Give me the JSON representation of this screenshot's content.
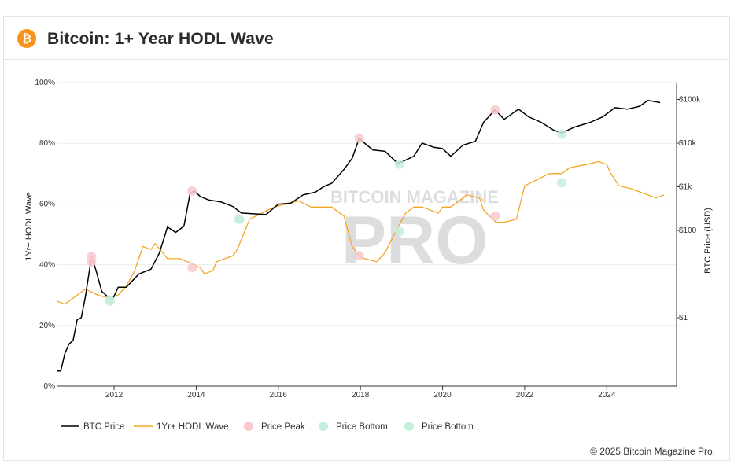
{
  "header": {
    "icon": "bitcoin-icon",
    "logo_glyph": "₿",
    "title": "Bitcoin: 1+ Year HODL Wave"
  },
  "watermark": {
    "top": "BITCOIN MAGAZINE",
    "main": "PRO"
  },
  "copyright": "© 2025 Bitcoin Magazine Pro.",
  "colors": {
    "btc_price": "#000000",
    "hodl_wave": "#f5a623",
    "price_peak": "#f9c9cd",
    "price_bottom": "#c6efdc",
    "grid": "#ebebeb"
  },
  "chart_data": {
    "type": "line",
    "title": "Bitcoin: 1+ Year HODL Wave",
    "x_axis": {
      "min": 2010.6,
      "max": 2025.7,
      "ticks": [
        "2012",
        "2014",
        "2016",
        "2018",
        "2020",
        "2022",
        "2024"
      ]
    },
    "y_left": {
      "label": "1Yr+ HODL Wave",
      "min": 0,
      "max": 100,
      "unit": "%",
      "ticks": [
        "0%",
        "20%",
        "40%",
        "60%",
        "80%",
        "100%"
      ]
    },
    "y_right": {
      "label": "BTC Price (USD)",
      "scale": "log",
      "ticks": [
        "$1",
        "$100",
        "$1k",
        "$10k",
        "$100k"
      ]
    },
    "grid": true,
    "legend_position": "bottom-left",
    "legend": [
      "BTC Price",
      "1Yr+ HODL Wave",
      "Price Peak",
      "Price Bottom",
      "Price Bottom"
    ],
    "series": [
      {
        "name": "BTC Price",
        "axis": "right",
        "x": [
          2010.6,
          2010.7,
          2010.8,
          2010.9,
          2011.0,
          2011.1,
          2011.2,
          2011.3,
          2011.45,
          2011.55,
          2011.7,
          2011.85,
          2011.95,
          2012.1,
          2012.3,
          2012.6,
          2012.9,
          2013.1,
          2013.3,
          2013.5,
          2013.7,
          2013.85,
          2013.95,
          2014.1,
          2014.3,
          2014.6,
          2014.9,
          2015.1,
          2015.4,
          2015.7,
          2016.0,
          2016.3,
          2016.6,
          2016.9,
          2017.1,
          2017.3,
          2017.6,
          2017.8,
          2017.97,
          2018.1,
          2018.3,
          2018.6,
          2018.9,
          2019.0,
          2019.3,
          2019.5,
          2019.8,
          2020.0,
          2020.2,
          2020.5,
          2020.8,
          2021.0,
          2021.28,
          2021.5,
          2021.85,
          2022.1,
          2022.4,
          2022.7,
          2022.9,
          2023.2,
          2023.6,
          2023.9,
          2024.2,
          2024.5,
          2024.8,
          2025.0,
          2025.3
        ],
        "values": [
          0.06,
          0.06,
          0.15,
          0.25,
          0.3,
          0.9,
          1,
          3,
          25,
          13,
          4,
          3,
          2.5,
          5,
          5,
          10,
          13,
          30,
          120,
          90,
          125,
          700,
          800,
          600,
          500,
          450,
          350,
          250,
          240,
          230,
          400,
          420,
          650,
          750,
          1000,
          1200,
          2500,
          4500,
          13000,
          10000,
          7000,
          6500,
          3500,
          3700,
          5000,
          10000,
          8000,
          7500,
          5000,
          9000,
          11000,
          30000,
          58000,
          35000,
          60000,
          40000,
          30000,
          20000,
          17000,
          23000,
          30000,
          40000,
          65000,
          60000,
          70000,
          95000,
          85000
        ]
      },
      {
        "name": "1Yr+ HODL Wave",
        "axis": "left",
        "x": [
          2010.6,
          2010.8,
          2011.0,
          2011.3,
          2011.6,
          2011.9,
          2012.1,
          2012.3,
          2012.5,
          2012.7,
          2012.9,
          2013.0,
          2013.3,
          2013.6,
          2013.95,
          2014.1,
          2014.2,
          2014.4,
          2014.5,
          2014.7,
          2014.9,
          2015.0,
          2015.3,
          2015.6,
          2015.9,
          2016.2,
          2016.5,
          2016.8,
          2017.0,
          2017.3,
          2017.6,
          2017.8,
          2017.97,
          2018.1,
          2018.4,
          2018.6,
          2018.9,
          2019.1,
          2019.3,
          2019.5,
          2019.7,
          2019.9,
          2020.0,
          2020.2,
          2020.4,
          2020.6,
          2020.9,
          2021.0,
          2021.3,
          2021.5,
          2021.8,
          2022.0,
          2022.3,
          2022.6,
          2022.9,
          2023.1,
          2023.5,
          2023.8,
          2024.0,
          2024.1,
          2024.3,
          2024.6,
          2025.0,
          2025.2,
          2025.4
        ],
        "values": [
          28,
          27,
          29,
          32,
          30,
          29,
          30,
          33,
          38,
          46,
          45,
          47,
          42,
          42,
          40,
          39,
          37,
          38,
          41,
          42,
          43,
          45,
          55,
          57,
          59,
          60,
          61,
          59,
          59,
          59,
          56,
          46,
          43,
          42,
          41,
          44,
          52,
          57,
          59,
          59,
          58,
          57,
          59,
          59,
          61,
          63,
          62,
          58,
          54,
          54,
          55,
          66,
          68,
          70,
          70,
          72,
          73,
          74,
          73,
          70,
          66,
          65,
          63,
          62,
          63
        ]
      }
    ],
    "markers": [
      {
        "name": "Price Peak",
        "x": [
          2011.45,
          2013.9,
          2017.97,
          2021.28
        ],
        "axis": "right",
        "values": [
          25,
          800,
          13000,
          58000
        ]
      },
      {
        "name": "Price Peak",
        "x": [
          2011.45,
          2013.9,
          2017.97,
          2021.28
        ],
        "axis": "left",
        "values": [
          41,
          39,
          43,
          56
        ]
      },
      {
        "name": "Price Bottom",
        "x": [
          2011.9,
          2015.05,
          2018.95,
          2022.9
        ],
        "axis": "right",
        "values": [
          2.5,
          180,
          3300,
          16000
        ]
      },
      {
        "name": "Price Bottom",
        "x": [
          2011.9,
          2015.05,
          2018.95,
          2022.9
        ],
        "axis": "left",
        "values": [
          28,
          55,
          51,
          67
        ]
      }
    ]
  }
}
